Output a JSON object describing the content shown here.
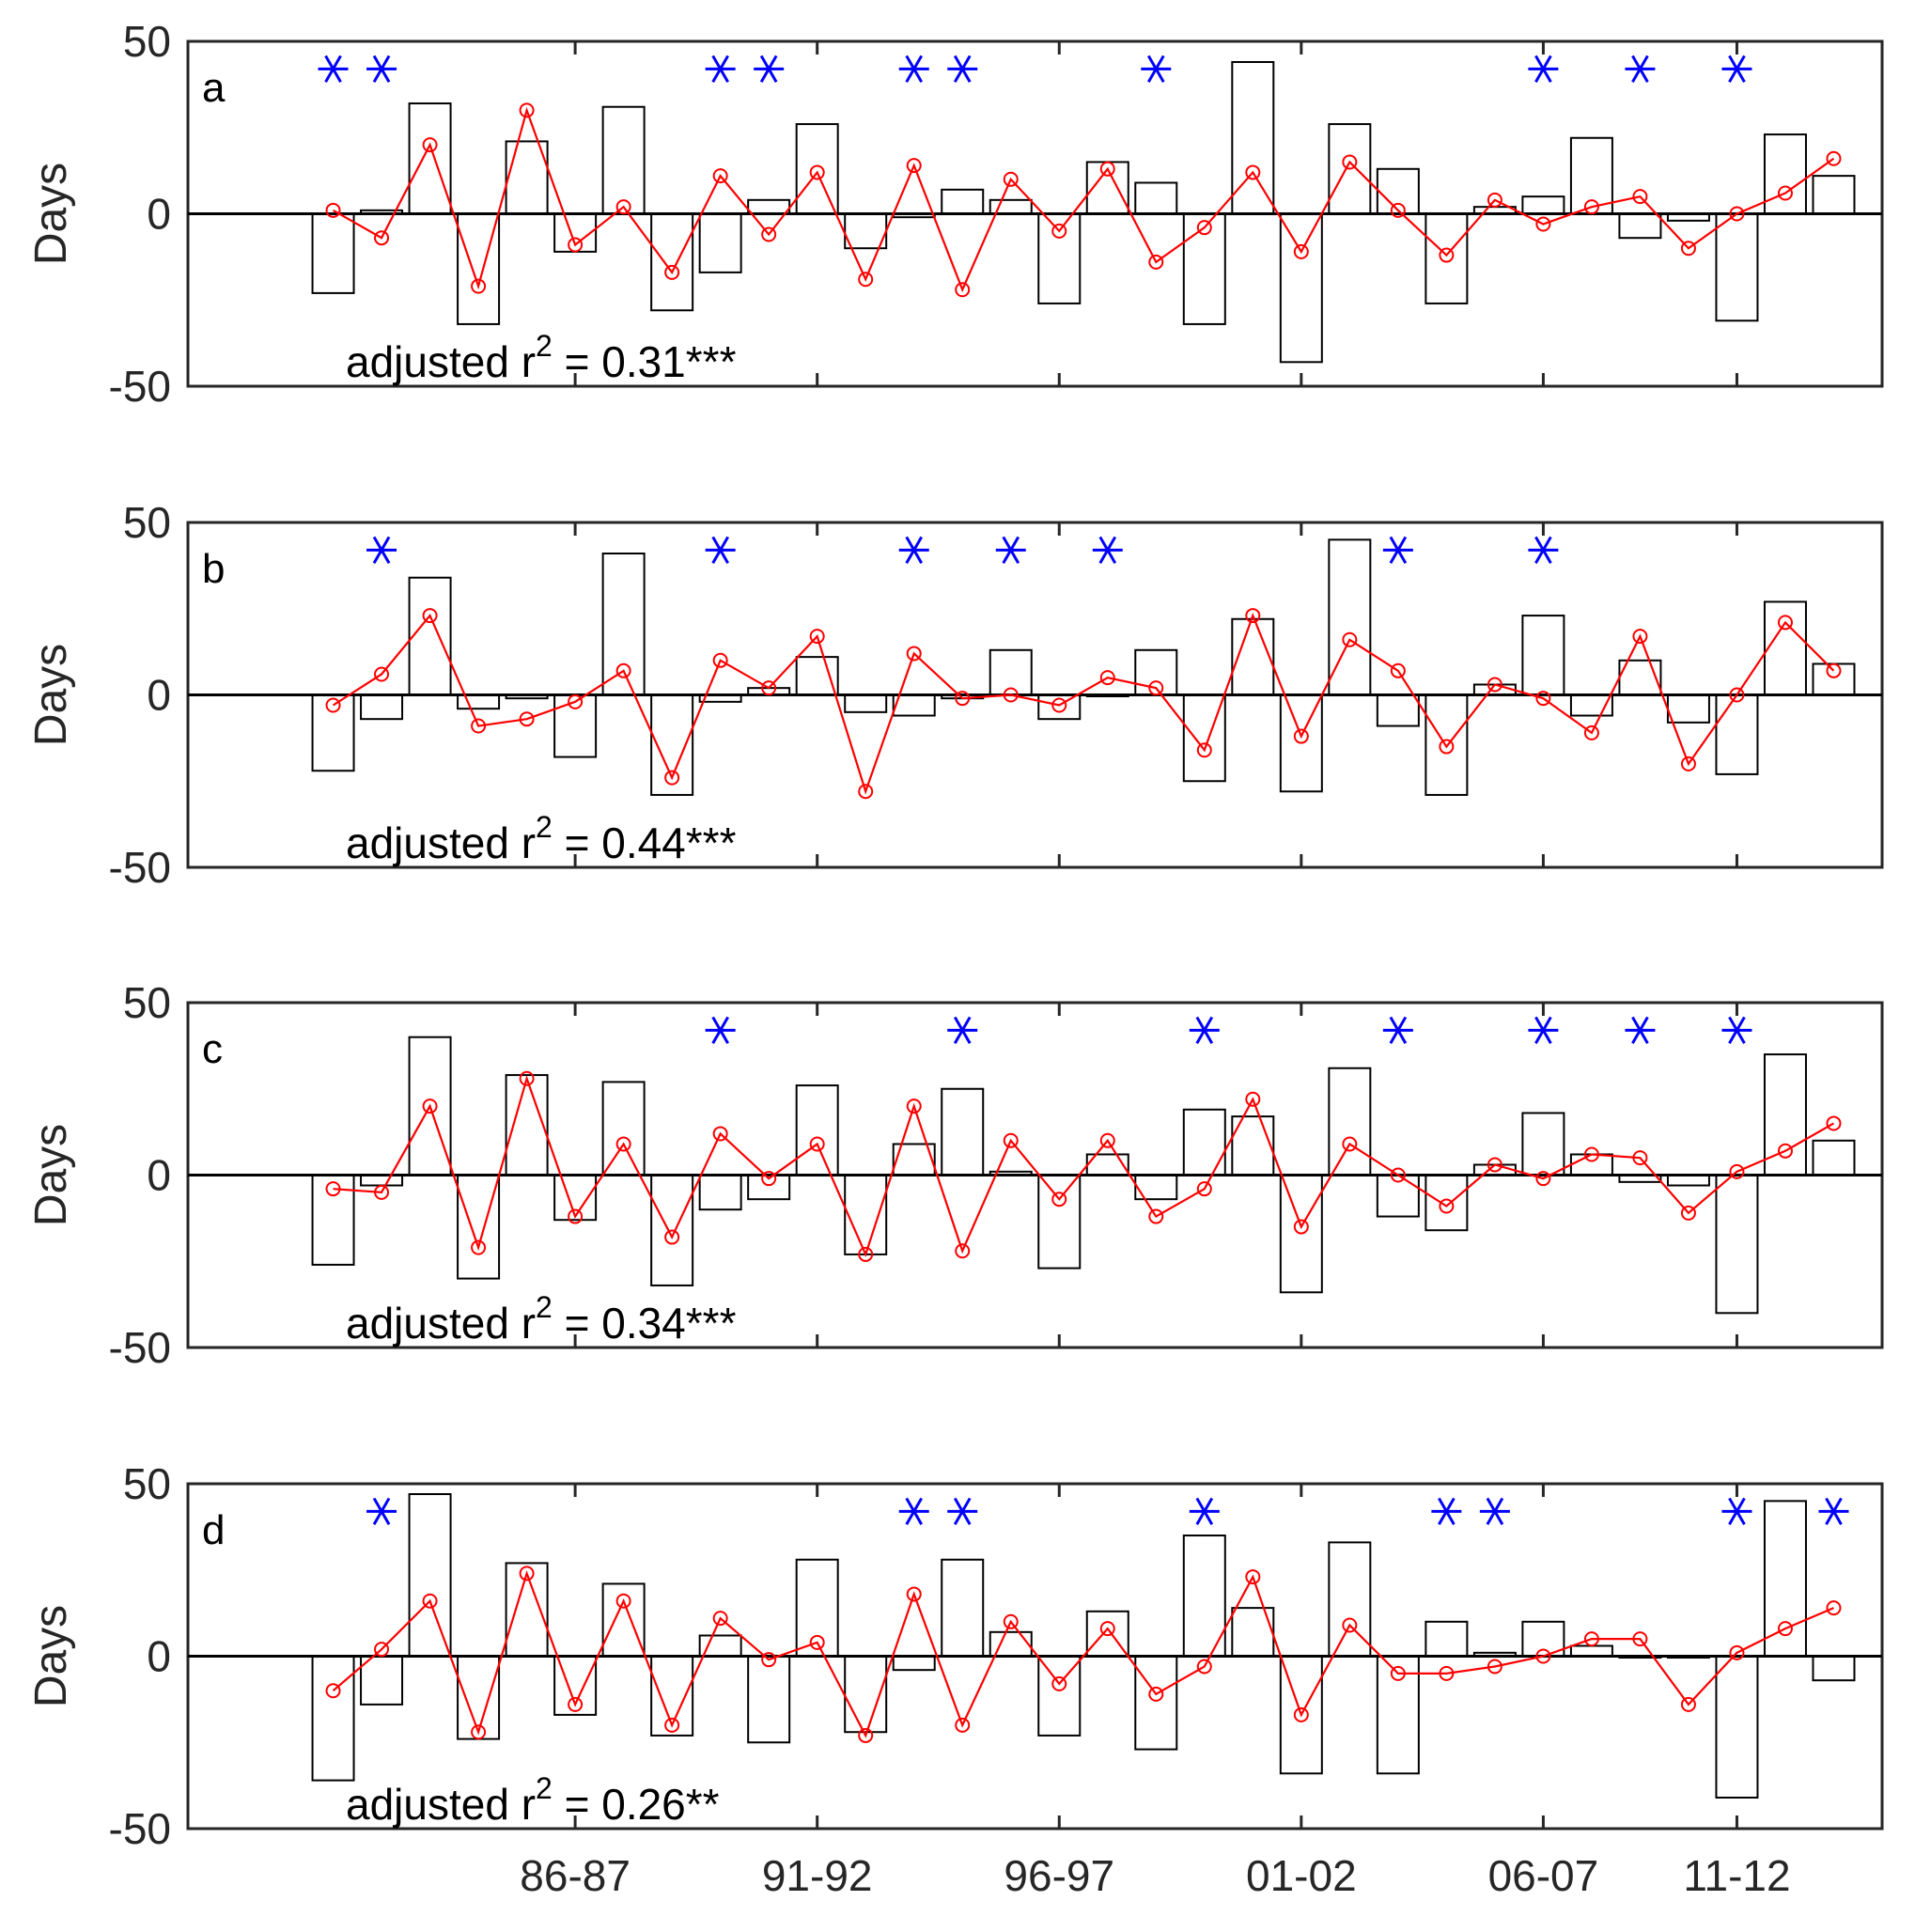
{
  "chart_data": {
    "type": "bar",
    "description_labels": {
      "ylabel": "Days",
      "xtick_labels": [
        "86-87",
        "91-92",
        "96-97",
        "01-02",
        "06-07",
        "11-12"
      ]
    },
    "x_index_range": [
      1,
      32
    ],
    "ylim": [
      -50,
      50
    ],
    "yticks": [
      -50,
      0,
      50
    ],
    "colors": {
      "bars": "#000000",
      "line": "#ff0000",
      "stars": "#0000ff",
      "axis": "#262626"
    },
    "panels": [
      {
        "letter": "a",
        "annotation_prefix": "adjusted r",
        "annotation_sup": "2",
        "annotation_suffix": " = 0.31***",
        "bars": [
          -23,
          1,
          32,
          -32,
          21,
          -11,
          31,
          -28,
          -17,
          4,
          26,
          -10,
          -1,
          7,
          4,
          -26,
          15,
          9,
          -32,
          44,
          -43,
          26,
          13,
          -26,
          2,
          5,
          22,
          -7,
          -2,
          -31,
          23,
          11
        ],
        "line": [
          1,
          -7,
          20,
          -21,
          30,
          -9,
          2,
          -17,
          11,
          -6,
          12,
          -19,
          14,
          -22,
          10,
          -5,
          13,
          -14,
          -4,
          12,
          -11,
          15,
          1,
          -12,
          4,
          -3,
          2,
          5,
          -10,
          0,
          6,
          16
        ],
        "stars": [
          1,
          2,
          9,
          10,
          13,
          14,
          18,
          26,
          28,
          30
        ]
      },
      {
        "letter": "b",
        "annotation_prefix": "adjusted r",
        "annotation_sup": "2",
        "annotation_suffix": " = 0.44***",
        "bars": [
          -22,
          -7,
          34,
          -4,
          -1,
          -18,
          41,
          -29,
          -2,
          2,
          11,
          -5,
          -6,
          -1,
          13,
          -7,
          0,
          13,
          -25,
          22,
          -28,
          45,
          -9,
          -29,
          3,
          23,
          -6,
          10,
          -8,
          -23,
          27,
          9
        ],
        "line": [
          -3,
          6,
          23,
          -9,
          -7,
          -2,
          7,
          -24,
          10,
          2,
          17,
          -28,
          12,
          -1,
          0,
          -3,
          5,
          2,
          -16,
          23,
          -12,
          16,
          7,
          -15,
          3,
          -1,
          -11,
          17,
          -20,
          0,
          21,
          7
        ],
        "stars": [
          2,
          9,
          13,
          15,
          17,
          23,
          26
        ]
      },
      {
        "letter": "c",
        "annotation_prefix": "adjusted r",
        "annotation_sup": "2",
        "annotation_suffix": " = 0.34***",
        "bars": [
          -26,
          -3,
          40,
          -30,
          29,
          -13,
          27,
          -32,
          -10,
          -7,
          26,
          -23,
          9,
          25,
          1,
          -27,
          6,
          -7,
          19,
          17,
          -34,
          31,
          -12,
          -16,
          3,
          18,
          6,
          -2,
          -3,
          -40,
          35,
          10
        ],
        "line": [
          -4,
          -5,
          20,
          -21,
          28,
          -12,
          9,
          -18,
          12,
          -1,
          9,
          -23,
          20,
          -22,
          10,
          -7,
          10,
          -12,
          -4,
          22,
          -15,
          9,
          0,
          -9,
          3,
          -1,
          6,
          5,
          -11,
          1,
          7,
          15
        ],
        "stars": [
          9,
          14,
          19,
          23,
          26,
          28,
          30
        ]
      },
      {
        "letter": "d",
        "annotation_prefix": "adjusted r",
        "annotation_sup": "2",
        "annotation_suffix": " = 0.26**",
        "bars": [
          -36,
          -14,
          47,
          -24,
          27,
          -17,
          21,
          -23,
          6,
          -25,
          28,
          -22,
          -4,
          28,
          7,
          -23,
          13,
          -27,
          35,
          14,
          -34,
          33,
          -34,
          10,
          1,
          10,
          3,
          0,
          0,
          -41,
          45,
          -7
        ],
        "line": [
          -10,
          2,
          16,
          -22,
          24,
          -14,
          16,
          -20,
          11,
          -1,
          4,
          -23,
          18,
          -20,
          10,
          -8,
          8,
          -11,
          -3,
          23,
          -17,
          9,
          -5,
          -5,
          -3,
          0,
          5,
          5,
          -14,
          1,
          8,
          14
        ],
        "stars": [
          2,
          13,
          14,
          19,
          24,
          25,
          30,
          32
        ]
      }
    ]
  }
}
